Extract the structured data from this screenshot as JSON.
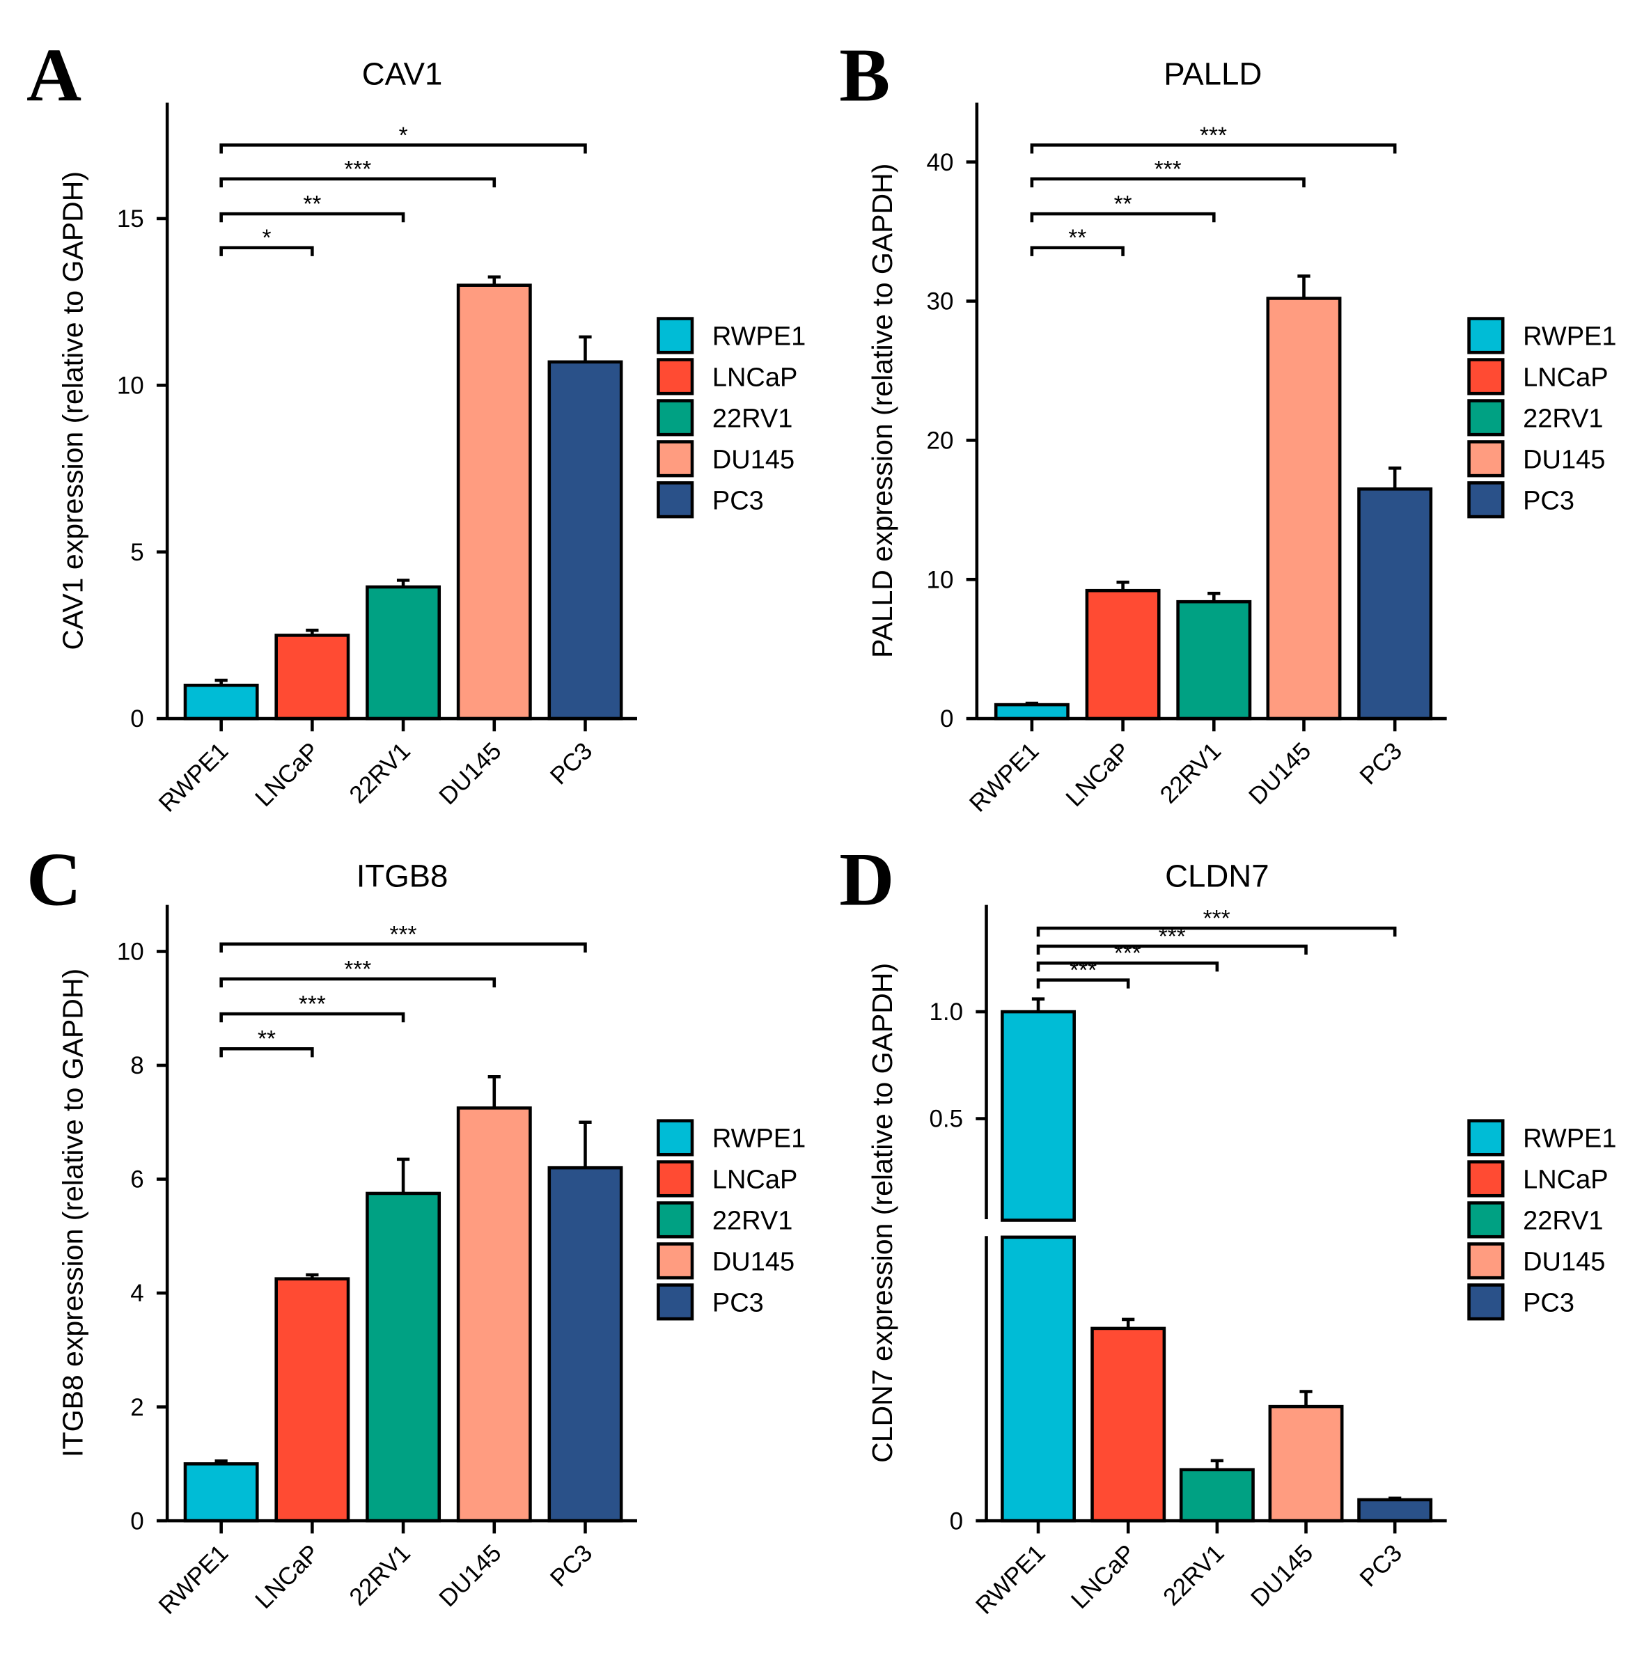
{
  "legend": [
    "RWPE1",
    "LNCaP",
    "22RV1",
    "DU145",
    "PC3"
  ],
  "colors": [
    "#00bcd6",
    "#ff4b33",
    "#00a183",
    "#ff9c80",
    "#2a5189"
  ],
  "chart_data": [
    {
      "panel": "A",
      "type": "bar",
      "title": "CAV1",
      "ylabel": "CAV1 expression (relative to GAPDH)",
      "categories": [
        "RWPE1",
        "LNCaP",
        "22RV1",
        "DU145",
        "PC3"
      ],
      "values": [
        1.0,
        2.5,
        3.95,
        13.0,
        10.7
      ],
      "errors": [
        0.15,
        0.15,
        0.2,
        0.25,
        0.75
      ],
      "yticks": [
        "0",
        "5",
        "10",
        "15"
      ],
      "ytick_values": [
        0,
        5,
        10,
        15
      ],
      "ylim": [
        0,
        18.5
      ],
      "significance": [
        {
          "from": "RWPE1",
          "to": "LNCaP",
          "label": "*"
        },
        {
          "from": "RWPE1",
          "to": "22RV1",
          "label": "**"
        },
        {
          "from": "RWPE1",
          "to": "DU145",
          "label": "***"
        },
        {
          "from": "RWPE1",
          "to": "PC3",
          "label": "*"
        }
      ],
      "legend": "right"
    },
    {
      "panel": "B",
      "type": "bar",
      "title": "PALLD",
      "ylabel": "PALLD expression (relative to GAPDH)",
      "categories": [
        "RWPE1",
        "LNCaP",
        "22RV1",
        "DU145",
        "PC3"
      ],
      "values": [
        1.0,
        9.2,
        8.4,
        30.2,
        16.5
      ],
      "errors": [
        0.1,
        0.6,
        0.6,
        1.6,
        1.5
      ],
      "yticks": [
        "0",
        "10",
        "20",
        "30",
        "40"
      ],
      "ytick_values": [
        0,
        10,
        20,
        30,
        40
      ],
      "ylim": [
        0,
        44
      ],
      "significance": [
        {
          "from": "RWPE1",
          "to": "LNCaP",
          "label": "**"
        },
        {
          "from": "RWPE1",
          "to": "22RV1",
          "label": "**"
        },
        {
          "from": "RWPE1",
          "to": "DU145",
          "label": "***"
        },
        {
          "from": "RWPE1",
          "to": "PC3",
          "label": "***"
        }
      ],
      "legend": "right"
    },
    {
      "panel": "C",
      "type": "bar",
      "title": "ITGB8",
      "ylabel": "ITGB8 expression (relative to GAPDH)",
      "categories": [
        "RWPE1",
        "LNCaP",
        "22RV1",
        "DU145",
        "PC3"
      ],
      "values": [
        1.0,
        4.25,
        5.75,
        7.25,
        6.2
      ],
      "errors": [
        0.05,
        0.07,
        0.6,
        0.55,
        0.8
      ],
      "yticks": [
        "0",
        "2",
        "4",
        "6",
        "8",
        "10"
      ],
      "ytick_values": [
        0,
        2,
        4,
        6,
        8,
        10
      ],
      "ylim": [
        0,
        10.8
      ],
      "significance": [
        {
          "from": "RWPE1",
          "to": "LNCaP",
          "label": "**"
        },
        {
          "from": "RWPE1",
          "to": "22RV1",
          "label": "***"
        },
        {
          "from": "RWPE1",
          "to": "DU145",
          "label": "***"
        },
        {
          "from": "RWPE1",
          "to": "PC3",
          "label": "***"
        }
      ],
      "legend": "right"
    },
    {
      "panel": "D",
      "type": "bar",
      "title": "CLDN7",
      "ylabel": "CLDN7 expression (relative to GAPDH)",
      "categories": [
        "RWPE1",
        "LNCaP",
        "22RV1",
        "DU145",
        "PC3"
      ],
      "values": [
        1.0,
        0.064,
        0.017,
        0.038,
        0.007
      ],
      "errors": [
        0.06,
        0.003,
        0.003,
        0.005,
        0.0005
      ],
      "yticks": [
        "0",
        "0.5",
        "1.0"
      ],
      "ytick_values": [
        0,
        0.5,
        1.0
      ],
      "broken_axis": true,
      "ylim_lower": [
        0,
        0.1
      ],
      "ylim_upper": [
        0.1,
        1.4
      ],
      "significance": [
        {
          "from": "RWPE1",
          "to": "LNCaP",
          "label": "***"
        },
        {
          "from": "RWPE1",
          "to": "22RV1",
          "label": "***"
        },
        {
          "from": "RWPE1",
          "to": "DU145",
          "label": "***"
        },
        {
          "from": "RWPE1",
          "to": "PC3",
          "label": "***"
        }
      ],
      "legend": "right"
    }
  ]
}
